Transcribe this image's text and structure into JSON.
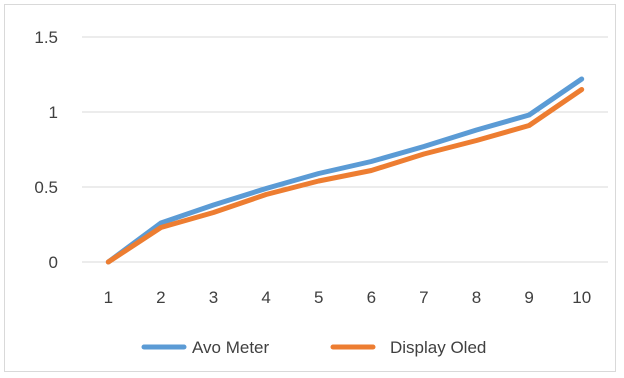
{
  "chart_data": {
    "type": "line",
    "title": "",
    "xlabel": "",
    "ylabel": "",
    "categories": [
      "1",
      "2",
      "3",
      "4",
      "5",
      "6",
      "7",
      "8",
      "9",
      "10"
    ],
    "ylim": [
      0,
      1.5
    ],
    "yticks": [
      "0",
      "0.5",
      "1",
      "1.5"
    ],
    "grid": true,
    "legend": "bottom",
    "series": [
      {
        "name": "Avo Meter",
        "color": "#5b9bd5",
        "values": [
          0.0,
          0.26,
          0.38,
          0.49,
          0.59,
          0.67,
          0.77,
          0.88,
          0.98,
          1.22
        ]
      },
      {
        "name": "Display Oled",
        "color": "#ed7d31",
        "values": [
          0.0,
          0.23,
          0.33,
          0.45,
          0.54,
          0.61,
          0.72,
          0.81,
          0.91,
          1.15
        ]
      }
    ]
  }
}
